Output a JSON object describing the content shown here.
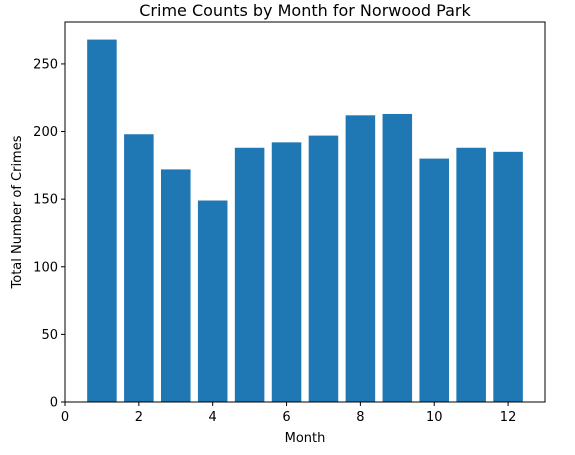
{
  "chart_data": {
    "type": "bar",
    "title": "Crime Counts by Month for Norwood Park",
    "xlabel": "Month",
    "ylabel": "Total Number of Crimes",
    "x": [
      1,
      2,
      3,
      4,
      5,
      6,
      7,
      8,
      9,
      10,
      11,
      12
    ],
    "values": [
      268,
      198,
      172,
      149,
      188,
      192,
      197,
      212,
      213,
      180,
      188,
      185
    ],
    "xlim": [
      0,
      13
    ],
    "ylim": [
      0,
      281
    ],
    "x_ticks": [
      0,
      2,
      4,
      6,
      8,
      10,
      12
    ],
    "y_ticks": [
      0,
      50,
      100,
      150,
      200,
      250
    ],
    "bar_width": 0.8,
    "bar_color": "#1f77b4",
    "grid": false,
    "legend": "none"
  }
}
